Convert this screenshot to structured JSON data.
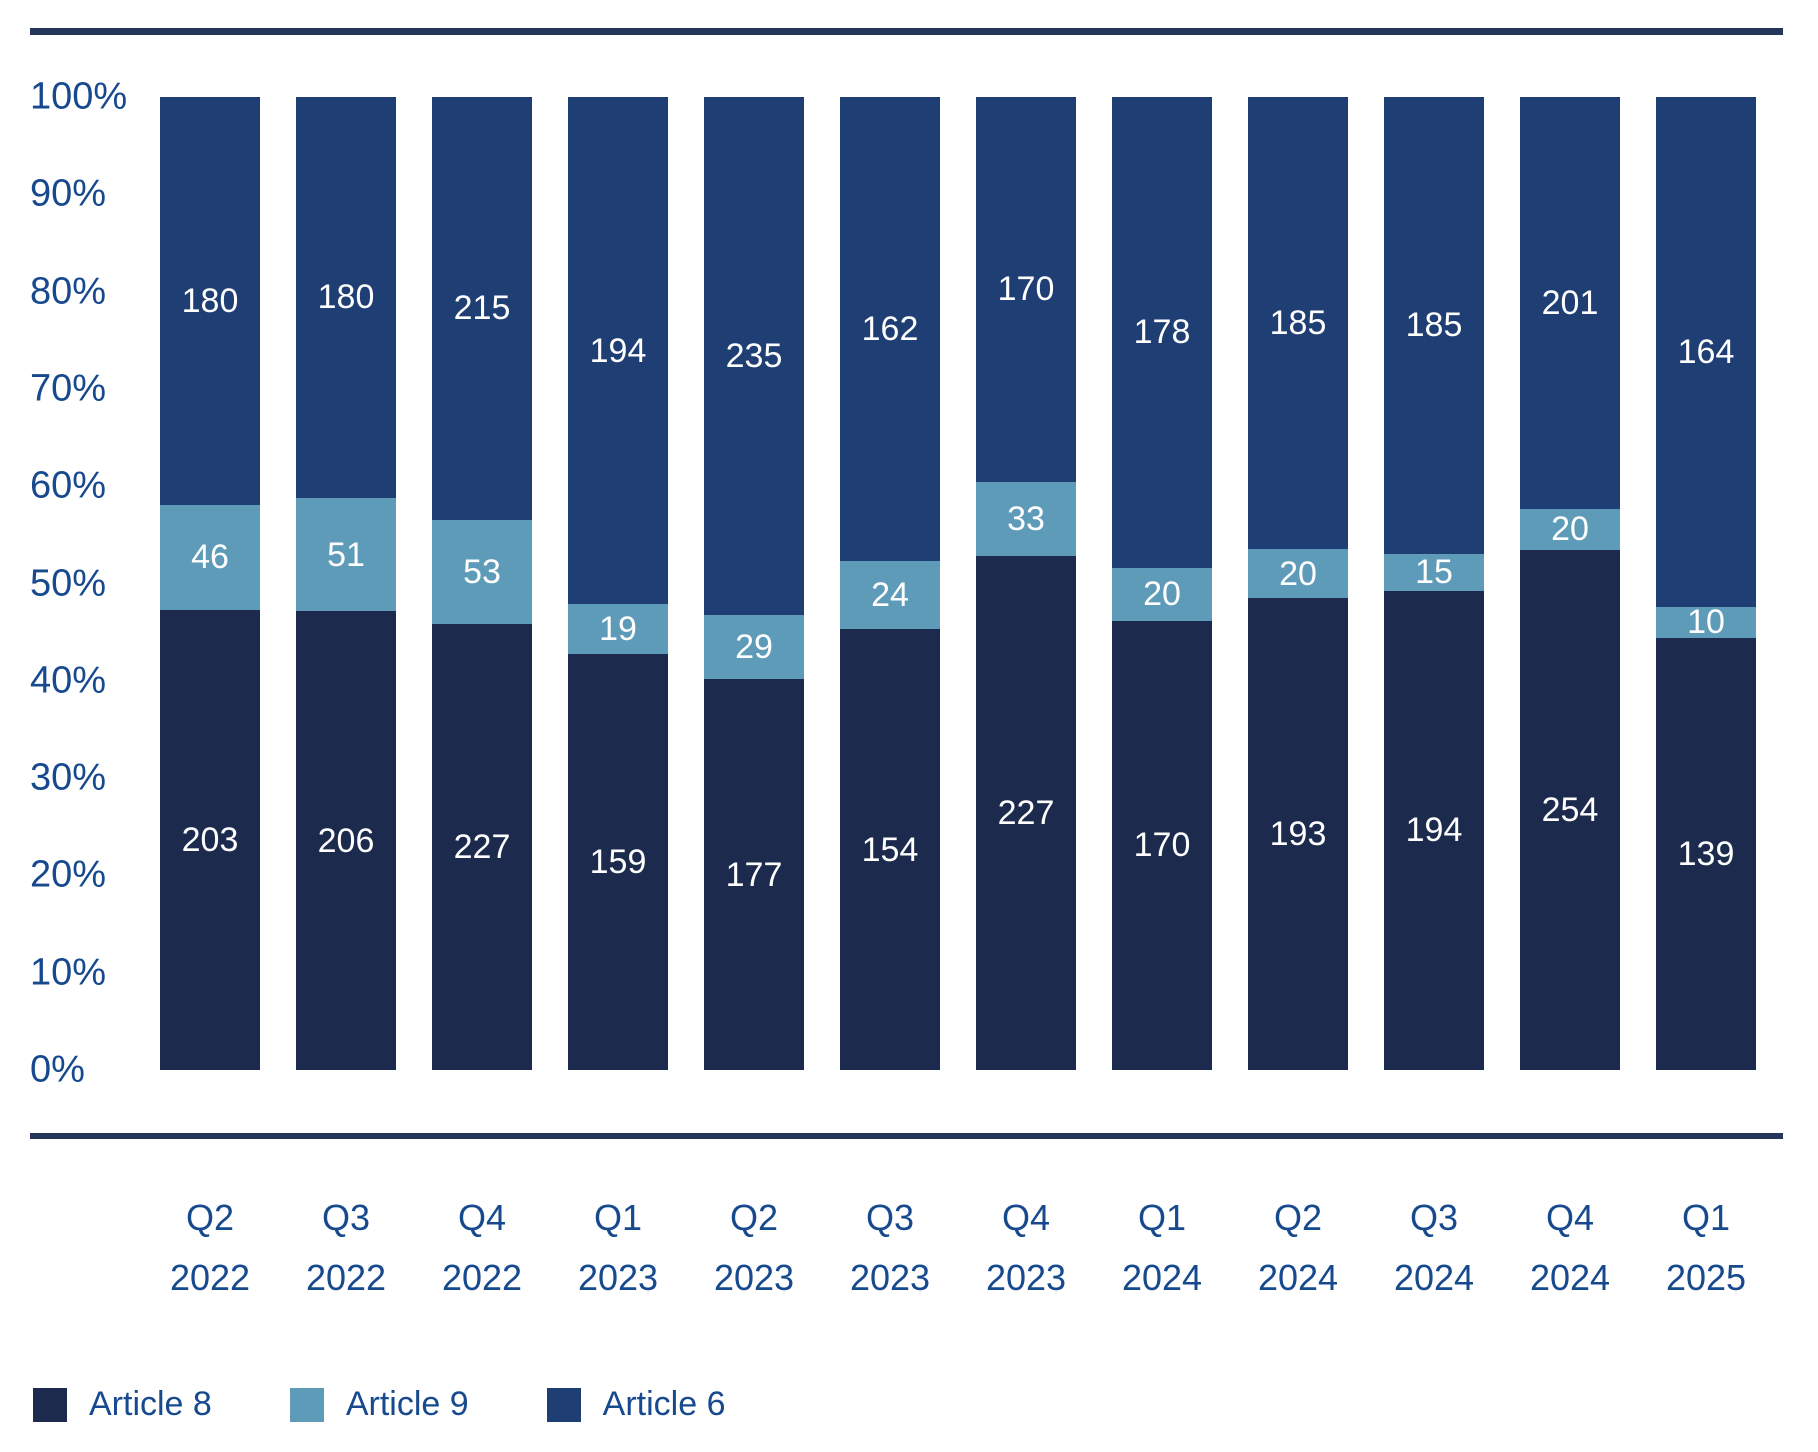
{
  "figure": {
    "background": "#ffffff",
    "rule_color": "#243659",
    "axis_text_color": "#17498e",
    "bar_label_color": "#ffffff"
  },
  "chart_data": {
    "type": "bar",
    "variant": "100-percent-stacked-column",
    "title": "",
    "xlabel": "",
    "ylabel": "",
    "grid": false,
    "categories": [
      {
        "quarter": "Q2",
        "year": "2022"
      },
      {
        "quarter": "Q3",
        "year": "2022"
      },
      {
        "quarter": "Q4",
        "year": "2022"
      },
      {
        "quarter": "Q1",
        "year": "2023"
      },
      {
        "quarter": "Q2",
        "year": "2023"
      },
      {
        "quarter": "Q3",
        "year": "2023"
      },
      {
        "quarter": "Q4",
        "year": "2023"
      },
      {
        "quarter": "Q1",
        "year": "2024"
      },
      {
        "quarter": "Q2",
        "year": "2024"
      },
      {
        "quarter": "Q3",
        "year": "2024"
      },
      {
        "quarter": "Q4",
        "year": "2024"
      },
      {
        "quarter": "Q1",
        "year": "2025"
      }
    ],
    "stack_order_bottom_to_top": [
      "Article 8",
      "Article 9",
      "Article 6"
    ],
    "series": [
      {
        "name": "Article 8",
        "color": "#1c2b4d",
        "values": [
          203,
          206,
          227,
          159,
          177,
          154,
          227,
          170,
          193,
          194,
          254,
          139
        ]
      },
      {
        "name": "Article 9",
        "color": "#5d9bb9",
        "values": [
          46,
          51,
          53,
          19,
          29,
          24,
          33,
          20,
          20,
          15,
          20,
          10
        ]
      },
      {
        "name": "Article 6",
        "color": "#1f3e74",
        "values": [
          180,
          180,
          215,
          194,
          235,
          162,
          170,
          178,
          185,
          185,
          201,
          164
        ]
      }
    ],
    "y_axis": {
      "min": 0,
      "max": 100,
      "tick_labels": [
        "100%",
        "90%",
        "80%",
        "70%",
        "60%",
        "50%",
        "40%",
        "30%",
        "20%",
        "10%",
        "0%"
      ]
    },
    "legend": {
      "position": "bottom-left",
      "entries": [
        "Article 8",
        "Article 9",
        "Article 6"
      ]
    }
  }
}
